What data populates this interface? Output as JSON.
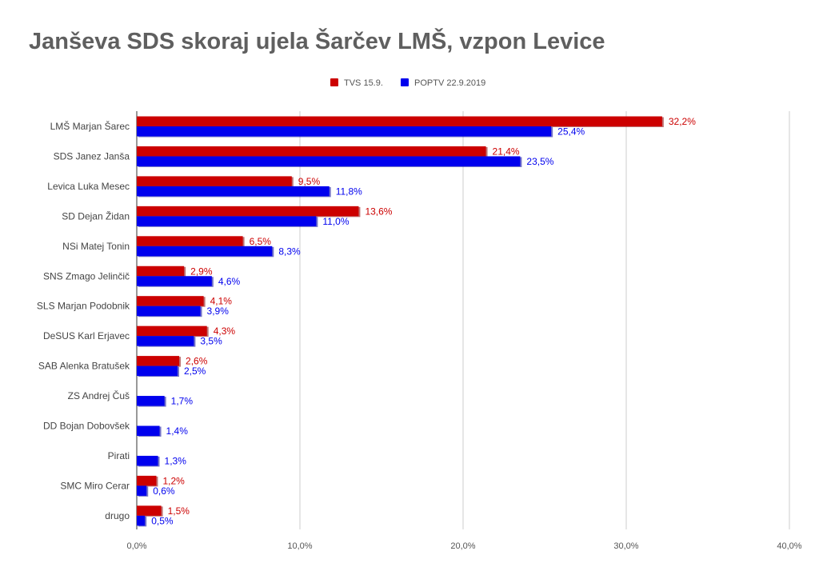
{
  "chart_data": {
    "type": "bar",
    "orientation": "horizontal",
    "title": "Janševa SDS skoraj ujela Šarčev LMŠ, vzpon Levice",
    "xlabel": "",
    "ylabel": "",
    "xlim": [
      0,
      40
    ],
    "ticks": [
      0,
      10,
      20,
      30,
      40
    ],
    "tick_labels": [
      "0,0%",
      "10,0%",
      "20,0%",
      "30,0%",
      "40,0%"
    ],
    "grid": true,
    "legend_position": "top-center",
    "categories": [
      "LMŠ Marjan Šarec",
      "SDS Janez Janša",
      "Levica Luka Mesec",
      "SD Dejan Židan",
      "NSi Matej Tonin",
      "SNS Zmago Jelinčič",
      "SLS Marjan Podobnik",
      "DeSUS Karl Erjavec",
      "SAB Alenka Bratušek",
      "ZS Andrej Čuš",
      "DD Bojan Dobovšek",
      "Pirati",
      "SMC Miro Cerar",
      "drugo"
    ],
    "series": [
      {
        "name": "TVS 15.9.",
        "color": "#cc0000",
        "values": [
          32.2,
          21.4,
          9.5,
          13.6,
          6.5,
          2.9,
          4.1,
          4.3,
          2.6,
          null,
          null,
          null,
          1.2,
          1.5
        ],
        "labels": [
          "32,2%",
          "21,4%",
          "9,5%",
          "13,6%",
          "6,5%",
          "2,9%",
          "4,1%",
          "4,3%",
          "2,6%",
          "",
          "",
          "",
          "1,2%",
          "1,5%"
        ]
      },
      {
        "name": "POPTV 22.9.2019",
        "color": "#0000ee",
        "values": [
          25.4,
          23.5,
          11.8,
          11.0,
          8.3,
          4.6,
          3.9,
          3.5,
          2.5,
          1.7,
          1.4,
          1.3,
          0.6,
          0.5
        ],
        "labels": [
          "25,4%",
          "23,5%",
          "11,8%",
          "11,0%",
          "8,3%",
          "4,6%",
          "3,9%",
          "3,5%",
          "2,5%",
          "1,7%",
          "1,4%",
          "1,3%",
          "0,6%",
          "0,5%"
        ]
      }
    ]
  }
}
